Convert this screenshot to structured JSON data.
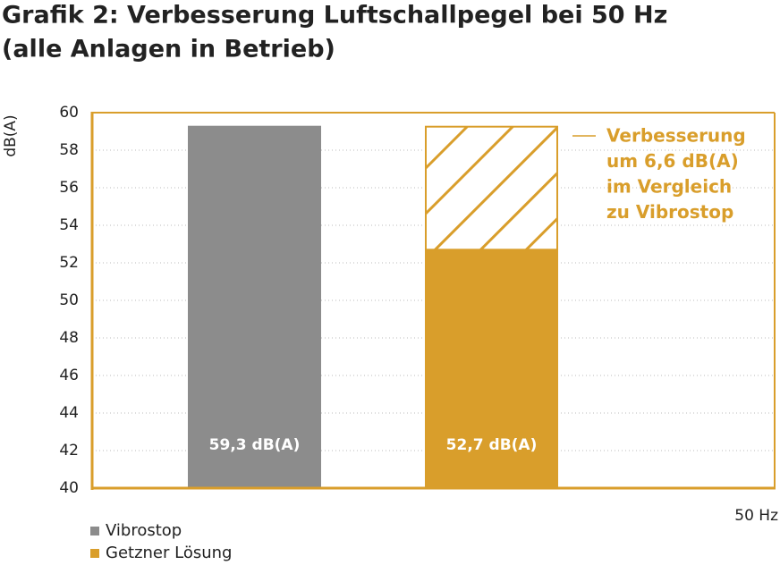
{
  "chart_data": {
    "type": "bar",
    "title": [
      "Grafik 2: Verbesserung Luftschallpegel bei 50 Hz",
      "(alle Anlagen in Betrieb)"
    ],
    "y_label": "dB(A)",
    "categories": [
      "50 Hz"
    ],
    "series": [
      {
        "name": "Vibrostop",
        "color": "#8c8c8c",
        "values": [
          59.3
        ],
        "value_labels": [
          "59,3 dB(A)"
        ]
      },
      {
        "name": "Getzner Lösung",
        "color": "#d99e2b",
        "values": [
          52.7
        ],
        "value_labels": [
          "52,7 dB(A)"
        ]
      }
    ],
    "annotation": [
      "Verbesserung",
      "um 6,6 dB(A)",
      "im Vergleich",
      "zu Vibrostop"
    ],
    "ylim": [
      40,
      60
    ],
    "yticks": [
      40,
      42,
      44,
      46,
      48,
      50,
      52,
      54,
      56,
      58,
      60
    ],
    "grid": true
  }
}
